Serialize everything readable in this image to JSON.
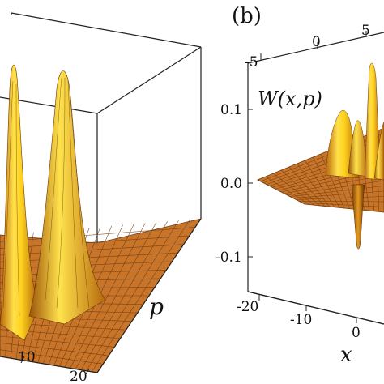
{
  "chart_data": [
    {
      "type": "surface",
      "panel": "a",
      "y_axis": {
        "label": "p",
        "ticks": [
          "10",
          "20"
        ]
      },
      "peaks": [
        {
          "p": -2,
          "relative_height": 1.0
        },
        {
          "p": 6,
          "relative_height": 0.98
        }
      ],
      "grid": true,
      "colors": {
        "surface_light": "#ffd23c",
        "surface_dark": "#b86a0c",
        "floor": "#c8752a",
        "box": "#222222"
      }
    },
    {
      "type": "surface",
      "panel": "b",
      "panel_label": "(b)",
      "z_axis": {
        "label": "W(x,p)",
        "ticks": [
          "0.1",
          "0.0",
          "-0.1"
        ],
        "range": [
          -0.13,
          0.15
        ]
      },
      "x_axis": {
        "label": "x",
        "ticks": [
          "-20",
          "-10",
          "0"
        ]
      },
      "y_axis": {
        "label": "p",
        "ticks": [
          "-5",
          "0",
          "5"
        ]
      },
      "features": [
        {
          "x": -8,
          "p": 2,
          "W": 0.09
        },
        {
          "x": -4,
          "p": 1,
          "W": 0.07
        },
        {
          "x": 2,
          "p": 4,
          "W": 0.14
        },
        {
          "x": 0,
          "p": 0,
          "W": -0.11
        }
      ],
      "grid": true,
      "colors": {
        "surface_light": "#ffd23c",
        "surface_dark": "#b86a0c",
        "floor": "#c8752a",
        "box": "#222222"
      }
    }
  ]
}
